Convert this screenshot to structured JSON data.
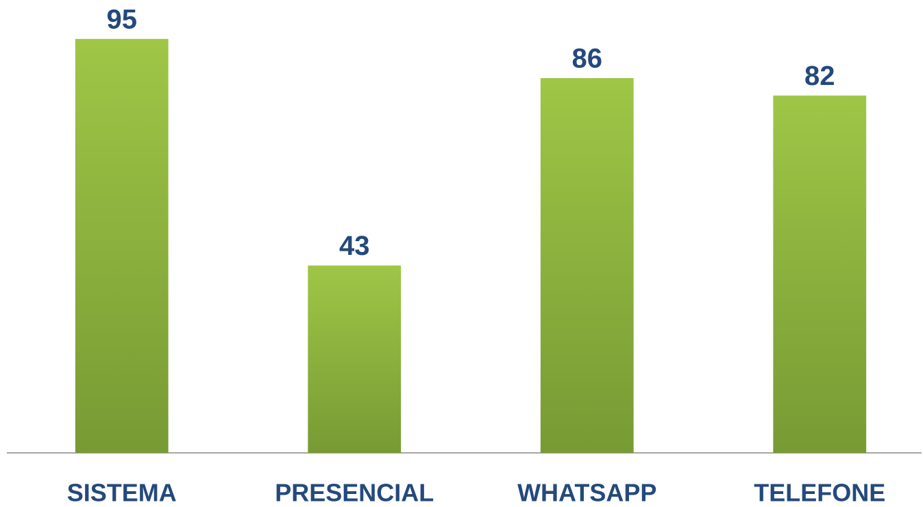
{
  "chart_data": {
    "type": "bar",
    "categories": [
      "SISTEMA",
      "PRESENCIAL",
      "WHATSAPP",
      "TELEFONE"
    ],
    "values": [
      95,
      43,
      86,
      82
    ],
    "color": "#9dc544",
    "ylim": [
      0,
      100
    ]
  }
}
